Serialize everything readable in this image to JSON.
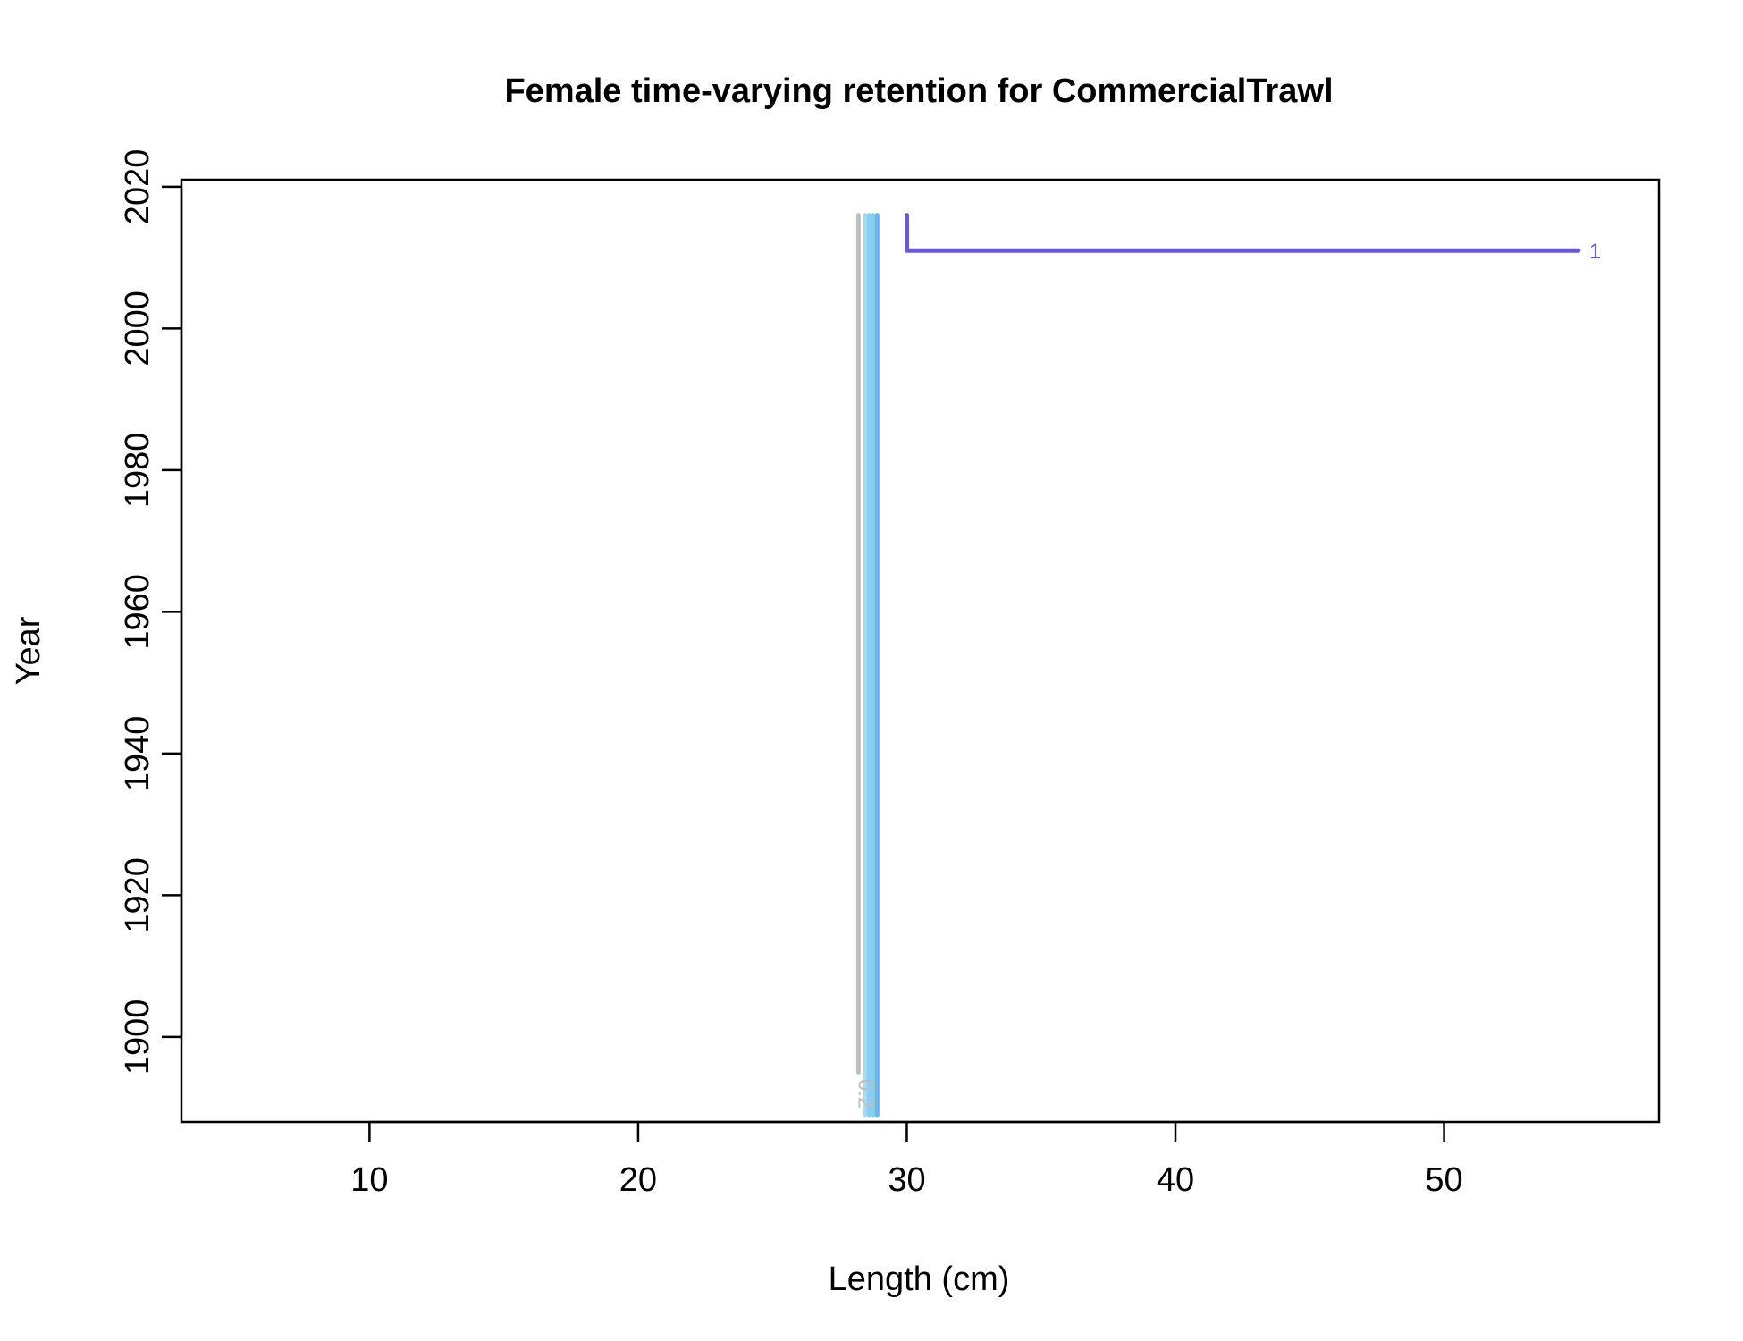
{
  "chart_data": {
    "type": "line",
    "title": "Female time-varying retention for CommercialTrawl",
    "xlabel": "Length (cm)",
    "ylabel": "Year",
    "xlim": [
      3,
      58
    ],
    "ylim": [
      1888,
      2021
    ],
    "x_ticks": [
      "10",
      "20",
      "30",
      "40",
      "50"
    ],
    "y_ticks": [
      "1900",
      "1920",
      "1940",
      "1960",
      "1980",
      "2000",
      "2020"
    ],
    "grid": false,
    "legend": "none",
    "series": [
      {
        "color": "#BEBEBE",
        "points": [
          [
            28.2,
            2016
          ],
          [
            28.2,
            1895
          ]
        ],
        "label": "0.2"
      },
      {
        "color": "#ADD8E6",
        "points": [
          [
            28.45,
            2016
          ],
          [
            28.45,
            1889
          ]
        ]
      },
      {
        "color": "#87CEFA",
        "points": [
          [
            28.6,
            2016
          ],
          [
            28.6,
            1889
          ]
        ]
      },
      {
        "color": "#87CEEB",
        "points": [
          [
            28.75,
            2016
          ],
          [
            28.75,
            2003
          ],
          [
            28.75,
            1889
          ]
        ]
      },
      {
        "color": "#6CB6F0",
        "points": [
          [
            28.9,
            2016
          ],
          [
            28.9,
            2002
          ],
          [
            28.9,
            1889
          ]
        ]
      },
      {
        "color": "#6A5ACD",
        "points": [
          [
            30,
            2016
          ],
          [
            30,
            2011
          ],
          [
            55,
            2011
          ]
        ],
        "label": "1"
      }
    ]
  }
}
